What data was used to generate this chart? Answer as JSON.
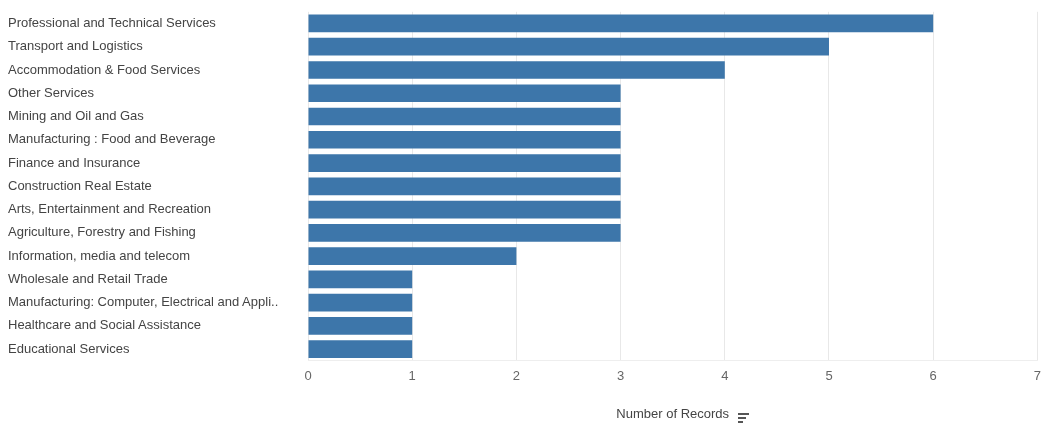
{
  "chart_data": {
    "type": "bar",
    "orientation": "horizontal",
    "categories": [
      "Professional and Technical Services",
      "Transport and Logistics",
      "Accommodation & Food Services",
      "Other Services",
      "Mining and Oil and Gas",
      "Manufacturing : Food and Beverage",
      "Finance and Insurance",
      "Construction Real Estate",
      "Arts, Entertainment and Recreation",
      "Agriculture, Forestry and Fishing",
      "Information, media and telecom",
      "Wholesale and Retail Trade",
      "Manufacturing: Computer, Electrical and Appli..",
      "Healthcare and Social Assistance",
      "Educational Services"
    ],
    "values": [
      6,
      5,
      4,
      3,
      3,
      3,
      3,
      3,
      3,
      3,
      2,
      1,
      1,
      1,
      1
    ],
    "color": "#3d76aa",
    "xlim": [
      0,
      7
    ],
    "xticks": [
      0,
      1,
      2,
      3,
      4,
      5,
      6,
      7
    ],
    "xlabel": "Number of Records",
    "grid": "x"
  }
}
